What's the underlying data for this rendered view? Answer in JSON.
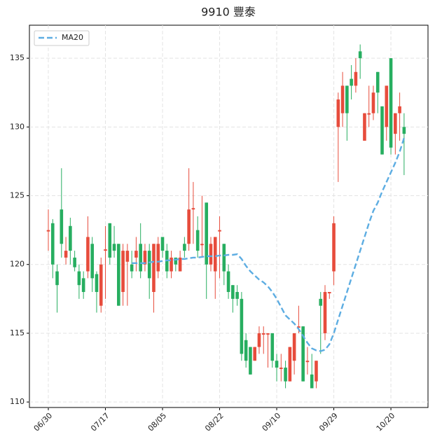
{
  "chart_data": {
    "type": "candlestick",
    "title": "9910 豐泰",
    "categories": [
      "06/30",
      null,
      null,
      null,
      null,
      null,
      null,
      null,
      null,
      null,
      null,
      null,
      null,
      "07/17",
      null,
      null,
      null,
      null,
      null,
      null,
      null,
      null,
      null,
      null,
      null,
      null,
      "08/05",
      null,
      null,
      null,
      null,
      null,
      null,
      null,
      null,
      null,
      null,
      null,
      null,
      "08/22",
      null,
      null,
      null,
      null,
      null,
      null,
      null,
      null,
      null,
      null,
      null,
      null,
      "09/10",
      null,
      null,
      null,
      null,
      null,
      null,
      null,
      null,
      null,
      null,
      null,
      null,
      "09/29",
      null,
      null,
      null,
      null,
      null,
      null,
      null,
      null,
      null,
      null,
      null,
      null,
      "10/20",
      null,
      null,
      null
    ],
    "open": [
      122.4,
      123,
      119.5,
      124,
      120.5,
      122.8,
      120.5,
      119.5,
      119,
      119.5,
      121.5,
      119.3,
      117,
      121,
      123,
      121.5,
      121.5,
      118,
      120.2,
      120,
      120.5,
      121.5,
      120,
      121,
      118,
      119.5,
      122,
      121,
      119.5,
      120.5,
      119.5,
      121.5,
      121.5,
      124,
      122.5,
      121.4,
      124.5,
      120,
      119.5,
      122.4,
      121.5,
      119.5,
      118.5,
      118,
      117.5,
      114.5,
      114,
      113,
      114,
      114.9,
      114.9,
      115,
      113,
      112.4,
      112.5,
      111.5,
      113,
      115.4,
      115.5,
      112.9,
      112,
      111.5,
      117.5,
      115,
      117.9,
      119.5,
      130,
      131,
      133,
      133.5,
      133,
      135.5,
      129,
      130.9,
      131,
      134,
      131.5,
      130,
      135,
      129.5,
      131,
      130
    ],
    "high": [
      124,
      123.3,
      120,
      127,
      122,
      123.4,
      121,
      120,
      119.5,
      123.5,
      122,
      119.5,
      120.5,
      122.8,
      123,
      122.8,
      121.5,
      121.5,
      121.5,
      121,
      122,
      123,
      121.5,
      121.5,
      121.5,
      122,
      122,
      121.5,
      121,
      120.5,
      121,
      122,
      127,
      126,
      123.5,
      125,
      124.5,
      122,
      122,
      123.5,
      121.5,
      120,
      118.5,
      118.5,
      118,
      115,
      114,
      114,
      115.5,
      115.5,
      115,
      115,
      113.5,
      113.5,
      113,
      114,
      115,
      117,
      115.5,
      114,
      113.5,
      113,
      118,
      118.5,
      118,
      123.5,
      132.5,
      134,
      133,
      134.5,
      135,
      136,
      131,
      133,
      133,
      134,
      131.5,
      133,
      135,
      131,
      132.5,
      131
    ],
    "low": [
      121,
      119,
      116.5,
      120.5,
      120,
      120,
      119.5,
      117.5,
      117.5,
      119,
      118,
      116.5,
      116.5,
      117.5,
      120,
      120.5,
      117,
      117,
      117,
      119,
      119.5,
      119,
      119.5,
      117.5,
      116.5,
      119,
      120.5,
      119,
      119,
      119.5,
      119.5,
      120.5,
      121,
      121.5,
      120.5,
      120.5,
      117.5,
      119.5,
      117.5,
      119,
      118.5,
      117.5,
      116.5,
      117,
      113,
      112.5,
      112,
      113,
      113.5,
      113.5,
      112.5,
      112.5,
      111.5,
      111.5,
      111,
      111.5,
      112,
      115,
      111.5,
      112,
      111,
      111,
      113.5,
      114.5,
      117.5,
      118.5,
      126,
      130,
      129,
      132,
      132.5,
      133.5,
      129,
      130,
      130.5,
      131,
      128,
      129,
      128,
      128,
      129,
      126.5
    ],
    "close": [
      122.5,
      120,
      118.5,
      121.5,
      121,
      121,
      119.8,
      118.5,
      118,
      122,
      119,
      118,
      120,
      121.1,
      120.5,
      121,
      117,
      121,
      121,
      119.5,
      121,
      119.5,
      121,
      119,
      121.5,
      121.5,
      121,
      119.5,
      120.5,
      120,
      120.5,
      121,
      124,
      124.1,
      121,
      121.5,
      120,
      121.5,
      122,
      122.5,
      119.5,
      118,
      117.5,
      117.5,
      113.5,
      113,
      112,
      114,
      115,
      115,
      115,
      113,
      112.5,
      112.5,
      111.5,
      114,
      115,
      115.5,
      111.5,
      113,
      111,
      113,
      117,
      118,
      118,
      123,
      132,
      133,
      131,
      133,
      134,
      135,
      131,
      131,
      132.5,
      132.5,
      128,
      133,
      128.5,
      131,
      131.5,
      129.5
    ],
    "up_color": "#e74c3c",
    "down_color": "#27ae60",
    "series": [
      {
        "name": "MA20",
        "color": "#5dade2",
        "values": [
          null,
          null,
          null,
          null,
          null,
          null,
          null,
          null,
          null,
          null,
          null,
          null,
          null,
          null,
          null,
          null,
          null,
          null,
          null,
          120.1,
          120.1,
          120.1,
          120.1,
          120.15,
          120.2,
          120.2,
          120.25,
          120.3,
          120.3,
          120.35,
          120.4,
          120.4,
          120.45,
          120.5,
          120.5,
          120.55,
          120.6,
          120.6,
          120.6,
          120.65,
          120.65,
          120.7,
          120.7,
          120.75,
          120.4,
          119.9,
          119.5,
          119.2,
          118.9,
          118.7,
          118.4,
          118.0,
          117.5,
          116.9,
          116.3,
          116.0,
          115.7,
          115.3,
          114.8,
          114.3,
          113.9,
          113.75,
          113.7,
          113.8,
          114.2,
          115.0,
          116.0,
          117.0,
          118.0,
          119.0,
          120.0,
          121.0,
          122.0,
          123.0,
          123.9,
          124.5,
          125.3,
          126.0,
          126.7,
          127.4,
          128.2,
          129.2
        ]
      }
    ],
    "ylim": [
      109.6,
      137.4
    ],
    "yticks": [
      110,
      115,
      120,
      125,
      130,
      135
    ],
    "grid": true,
    "legend": "upper left"
  }
}
